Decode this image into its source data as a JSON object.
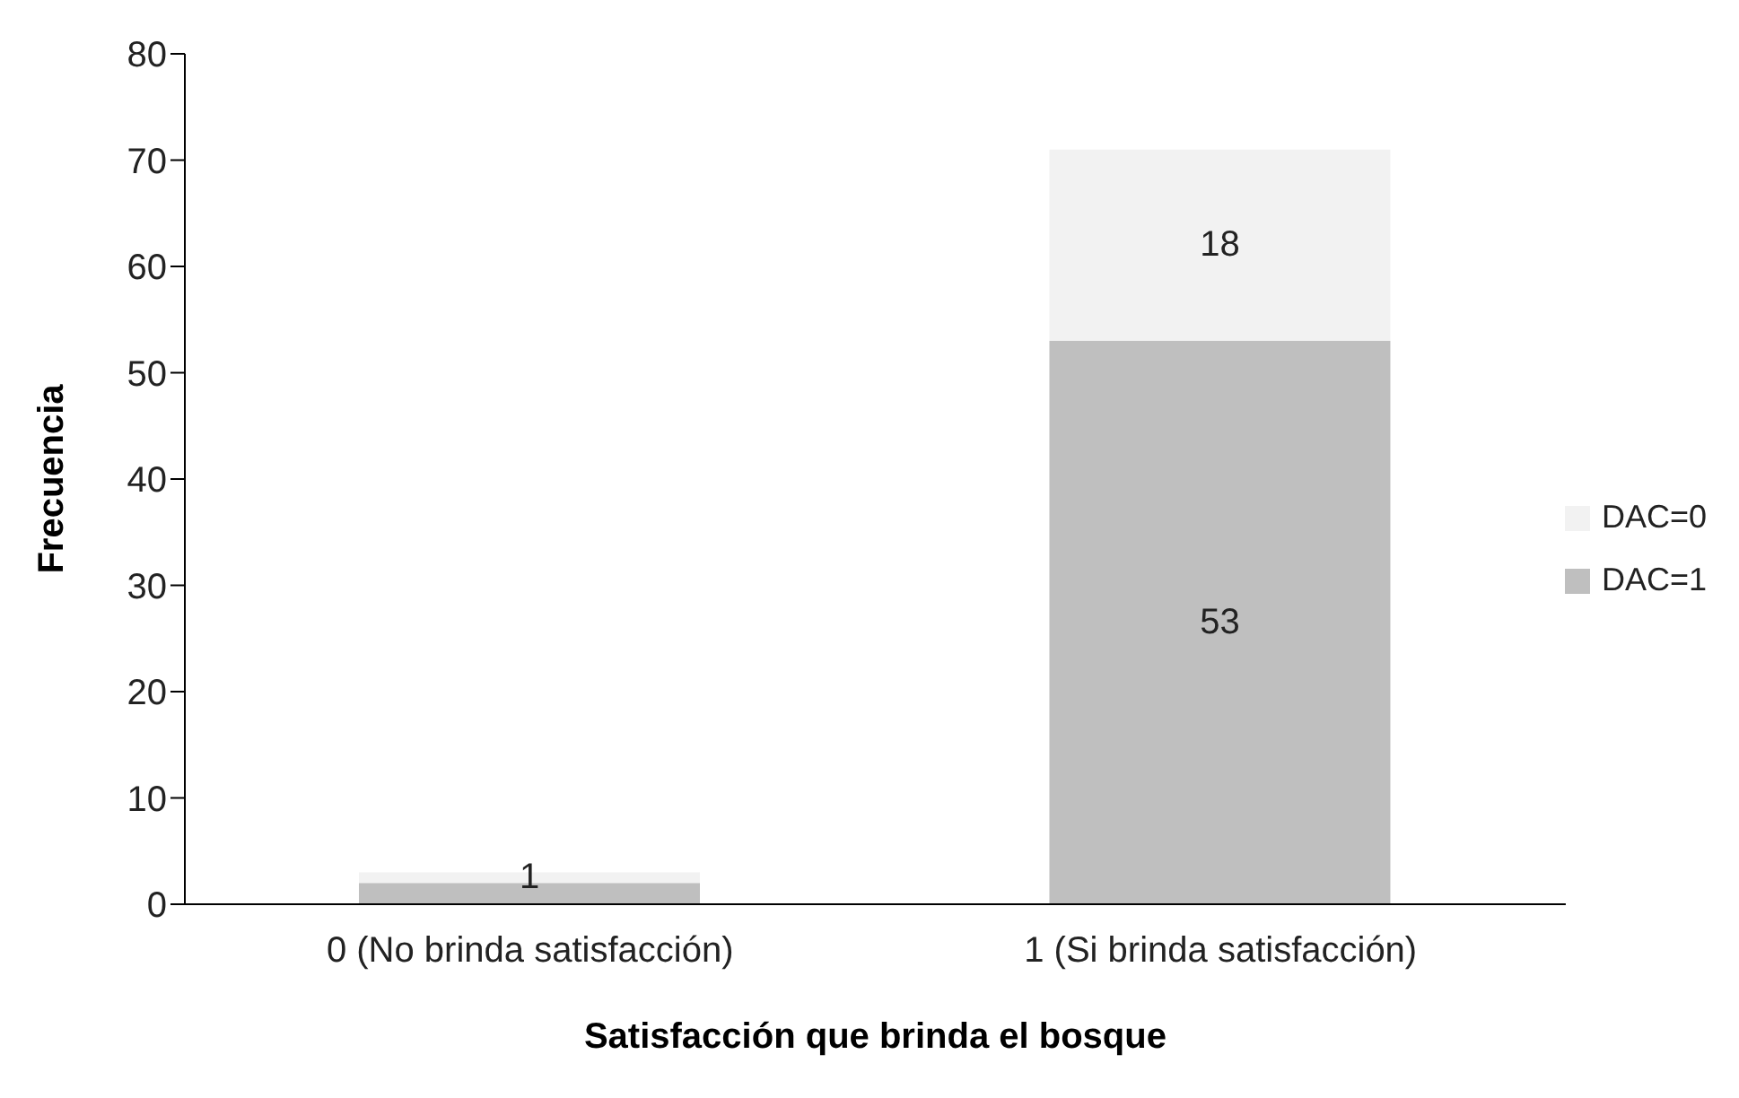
{
  "chart_data": {
    "type": "bar",
    "stacked": true,
    "categories": [
      "0 (No brinda satisfacción)",
      "1 (Si brinda satisfacción)"
    ],
    "series": [
      {
        "name": "DAC=1",
        "color": "#bfbfbf",
        "values": [
          2,
          53
        ],
        "value_labels": [
          null,
          "53"
        ]
      },
      {
        "name": "DAC=0",
        "color": "#f2f2f2",
        "values": [
          1,
          18
        ],
        "value_labels": [
          "1",
          "18"
        ]
      }
    ],
    "xlabel": "Satisfacción que brinda el bosque",
    "ylabel": "Frecuencia",
    "ylim": [
      0,
      80
    ],
    "yticks": [
      0,
      10,
      20,
      30,
      40,
      50,
      60,
      70,
      80
    ],
    "legend": "right",
    "grid": false
  }
}
